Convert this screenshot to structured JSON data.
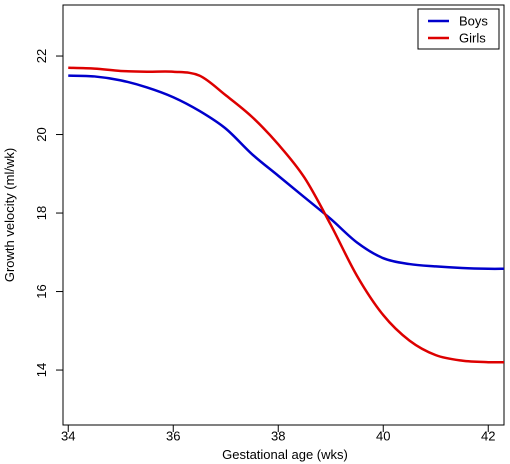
{
  "chart_data": {
    "type": "line",
    "title": "",
    "xlabel": "Gestational age (wks)",
    "ylabel": "Growth velocity (ml/wk)",
    "xlim": [
      33.9,
      42.3
    ],
    "ylim": [
      12.6,
      23.3
    ],
    "x_ticks": [
      "34",
      "36",
      "38",
      "40",
      "42"
    ],
    "y_ticks": [
      "14",
      "16",
      "18",
      "20",
      "22"
    ],
    "grid": false,
    "legend_position": "top-right",
    "series": [
      {
        "name": "Boys",
        "color": "#0000cc",
        "x": [
          34,
          34.5,
          35,
          35.5,
          36,
          36.5,
          37,
          37.5,
          38,
          38.5,
          39,
          39.5,
          40,
          40.5,
          41,
          41.5,
          42,
          42.3
        ],
        "y": [
          21.5,
          21.48,
          21.38,
          21.2,
          20.95,
          20.6,
          20.15,
          19.5,
          18.95,
          18.4,
          17.85,
          17.25,
          16.85,
          16.7,
          16.64,
          16.6,
          16.58,
          16.58
        ]
      },
      {
        "name": "Girls",
        "color": "#dd0000",
        "x": [
          34,
          34.5,
          35,
          35.5,
          36,
          36.5,
          37,
          37.5,
          38,
          38.5,
          39,
          39.5,
          40,
          40.5,
          41,
          41.5,
          42,
          42.3
        ],
        "y": [
          21.7,
          21.68,
          21.62,
          21.6,
          21.6,
          21.5,
          21.0,
          20.45,
          19.75,
          18.9,
          17.7,
          16.4,
          15.4,
          14.75,
          14.38,
          14.24,
          14.2,
          14.2
        ]
      }
    ]
  }
}
